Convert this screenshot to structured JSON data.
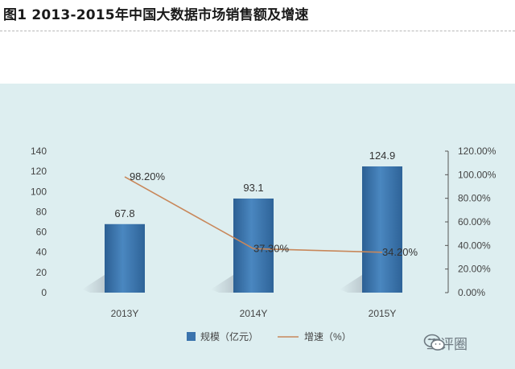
{
  "title": "图1   2013-2015年中国大数据市场销售额及增速",
  "watermark": "工评圈",
  "chart_data": {
    "type": "bar",
    "categories": [
      "2013Y",
      "2014Y",
      "2015Y"
    ],
    "series": [
      {
        "name": "规模（亿元）",
        "kind": "bar",
        "axis": "left",
        "values": [
          67.8,
          93.1,
          124.9
        ],
        "labels": [
          "67.8",
          "93.1",
          "124.9"
        ],
        "color": "#3a73ad"
      },
      {
        "name": "增速（%）",
        "kind": "line",
        "axis": "right",
        "values": [
          98.2,
          37.3,
          34.2
        ],
        "labels": [
          "98.20%",
          "37.30%",
          "34.20%"
        ],
        "color": "#c8875a"
      }
    ],
    "yleft": {
      "ylim": [
        0,
        140
      ],
      "ticks": [
        "0",
        "20",
        "40",
        "60",
        "80",
        "100",
        "120",
        "140"
      ]
    },
    "yright": {
      "ylim": [
        0,
        120
      ],
      "ticks": [
        "0.00%",
        "20.00%",
        "40.00%",
        "60.00%",
        "80.00%",
        "100.00%",
        "120.00%"
      ]
    },
    "legend_position": "bottom",
    "grid": false
  }
}
